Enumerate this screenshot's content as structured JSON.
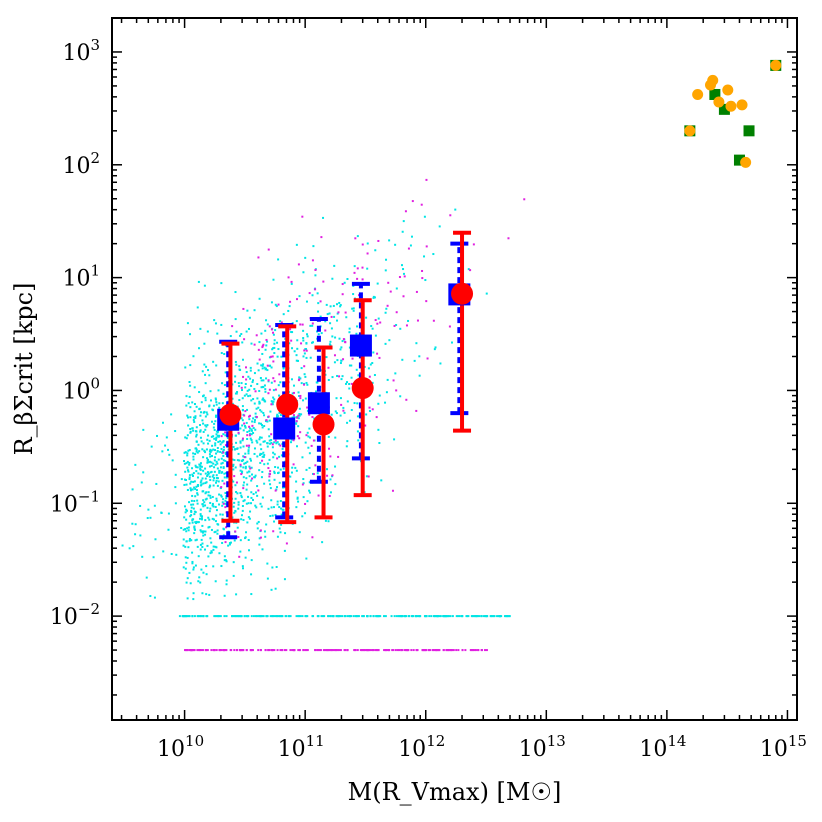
{
  "chart_data": {
    "type": "scatter",
    "xlabel": "M(R_Vmax) [M☉]",
    "ylabel": "R_βΣcrit [kpc]",
    "xscale": "log",
    "yscale": "log",
    "xlim": [
      2500000000.0,
      1200000000000000.0
    ],
    "ylim": [
      0.0012,
      2000
    ],
    "x_tick_labels": [
      "10",
      "10",
      "10",
      "10",
      "10",
      "10"
    ],
    "x_tick_exponents": [
      "10",
      "11",
      "12",
      "13",
      "14",
      "15"
    ],
    "y_tick_labels": [
      "10",
      "10",
      "10",
      "10",
      "10",
      "10"
    ],
    "y_tick_exponents": [
      "−2",
      "−1",
      "0",
      "1",
      "2",
      "3"
    ],
    "colors": {
      "cyan": "#00e5e5",
      "magenta": "#e020e0",
      "blue": "#0000ff",
      "red": "#ff0000",
      "green": "#008000",
      "orange": "#ffa500"
    },
    "series": [
      {
        "marker": "square",
        "color": "#0000ff",
        "errorbar_style": "dashed",
        "points": [
          {
            "x": 23000000000.0,
            "y": 0.55,
            "ylow": 0.05,
            "yhigh": 2.7
          },
          {
            "x": 67000000000.0,
            "y": 0.46,
            "ylow": 0.075,
            "yhigh": 3.8
          },
          {
            "x": 130000000000.0,
            "y": 0.77,
            "ylow": 0.155,
            "yhigh": 4.3
          },
          {
            "x": 290000000000.0,
            "y": 2.5,
            "ylow": 0.25,
            "yhigh": 8.8
          },
          {
            "x": 1900000000000.0,
            "y": 7.1,
            "ylow": 0.63,
            "yhigh": 20
          }
        ]
      },
      {
        "marker": "circle",
        "color": "#ff0000",
        "errorbar_style": "solid",
        "points": [
          {
            "x": 24000000000.0,
            "y": 0.61,
            "ylow": 0.07,
            "yhigh": 2.6
          },
          {
            "x": 71000000000.0,
            "y": 0.75,
            "ylow": 0.068,
            "yhigh": 3.7
          },
          {
            "x": 142000000000.0,
            "y": 0.5,
            "ylow": 0.075,
            "yhigh": 2.4
          },
          {
            "x": 300000000000.0,
            "y": 1.05,
            "ylow": 0.118,
            "yhigh": 6.3
          },
          {
            "x": 2000000000000.0,
            "y": 7.2,
            "ylow": 0.44,
            "yhigh": 25
          }
        ]
      },
      {
        "marker": "square",
        "color": "#008000",
        "points": [
          {
            "x": 155000000000000.0,
            "y": 200
          },
          {
            "x": 250000000000000.0,
            "y": 420
          },
          {
            "x": 300000000000000.0,
            "y": 310
          },
          {
            "x": 400000000000000.0,
            "y": 110
          },
          {
            "x": 480000000000000.0,
            "y": 200
          },
          {
            "x": 800000000000000.0,
            "y": 760
          }
        ]
      },
      {
        "marker": "circle",
        "color": "#ffa500",
        "points": [
          {
            "x": 155000000000000.0,
            "y": 200
          },
          {
            "x": 180000000000000.0,
            "y": 420
          },
          {
            "x": 230000000000000.0,
            "y": 510
          },
          {
            "x": 240000000000000.0,
            "y": 560
          },
          {
            "x": 270000000000000.0,
            "y": 360
          },
          {
            "x": 320000000000000.0,
            "y": 460
          },
          {
            "x": 340000000000000.0,
            "y": 330
          },
          {
            "x": 420000000000000.0,
            "y": 340
          },
          {
            "x": 450000000000000.0,
            "y": 105
          },
          {
            "x": 800000000000000.0,
            "y": 760
          }
        ]
      }
    ]
  }
}
